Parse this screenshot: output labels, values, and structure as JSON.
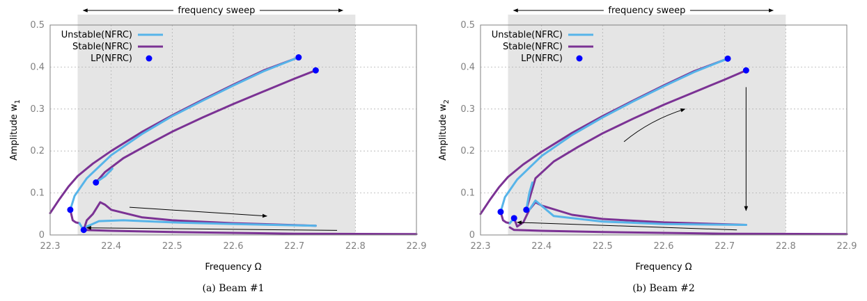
{
  "chart_data": [
    {
      "type": "line",
      "caption": "(a) Beam #1",
      "xlabel": "Frequency Ω",
      "ylabel": "Amplitude w",
      "ylabel_sub": "1",
      "xlim": [
        22.3,
        22.9
      ],
      "ylim": [
        0,
        0.5
      ],
      "xticks": [
        "22.3",
        "22.4",
        "22.5",
        "22.6",
        "22.7",
        "22.8",
        "22.9"
      ],
      "yticks": [
        "0",
        "0.1",
        "0.2",
        "0.3",
        "0.4",
        "0.5"
      ],
      "grid": true,
      "legend_position": "top-left",
      "legend": [
        "Unstable(NFRC)",
        "Stable(NFRC)",
        "LP(NFRC)"
      ],
      "shaded_region": [
        22.345,
        22.8
      ],
      "sweep_label": "frequency sweep",
      "colors": {
        "unstable": "#56b4e9",
        "stable": "#7b3294",
        "lp": "#0000ff",
        "shade": "#e5e5e5"
      },
      "series": [
        {
          "name": "Stable(NFRC)",
          "x": [
            22.3,
            22.315,
            22.33,
            22.345,
            22.37,
            22.4,
            22.45,
            22.5,
            22.55,
            22.6,
            22.65,
            22.707
          ],
          "y": [
            0.052,
            0.085,
            0.115,
            0.14,
            0.17,
            0.2,
            0.245,
            0.285,
            0.322,
            0.358,
            0.392,
            0.423
          ]
        },
        {
          "name": "Unstable(NFRC)",
          "x": [
            22.333,
            22.34,
            22.36,
            22.4,
            22.45,
            22.5,
            22.55,
            22.6,
            22.65,
            22.707
          ],
          "y": [
            0.06,
            0.093,
            0.135,
            0.19,
            0.24,
            0.283,
            0.32,
            0.356,
            0.39,
            0.423
          ]
        },
        {
          "name": "Stable(NFRC)",
          "x": [
            22.375,
            22.39,
            22.42,
            22.46,
            22.5,
            22.55,
            22.6,
            22.65,
            22.7,
            22.735
          ],
          "y": [
            0.125,
            0.15,
            0.183,
            0.215,
            0.246,
            0.28,
            0.312,
            0.342,
            0.372,
            0.392
          ]
        },
        {
          "name": "Unstable(NFRC)",
          "x": [
            22.375,
            22.39,
            22.402
          ],
          "y": [
            0.125,
            0.14,
            0.158
          ]
        },
        {
          "name": "Stable(NFRC)",
          "x": [
            22.333,
            22.337,
            22.342,
            22.348
          ],
          "y": [
            0.06,
            0.035,
            0.03,
            0.028
          ]
        },
        {
          "name": "Unstable(NFRC)",
          "x": [
            22.348,
            22.352,
            22.355
          ],
          "y": [
            0.028,
            0.018,
            0.012
          ]
        },
        {
          "name": "Stable(NFRC)",
          "x": [
            22.355,
            22.36,
            22.37,
            22.382,
            22.39,
            22.4,
            22.45,
            22.5,
            22.6,
            22.735
          ],
          "y": [
            0.012,
            0.035,
            0.05,
            0.078,
            0.072,
            0.06,
            0.042,
            0.035,
            0.028,
            0.022
          ]
        },
        {
          "name": "Unstable(NFRC)",
          "x": [
            22.36,
            22.38,
            22.42,
            22.5,
            22.6,
            22.735
          ],
          "y": [
            0.02,
            0.033,
            0.035,
            0.03,
            0.026,
            0.022
          ]
        },
        {
          "name": "Stable(NFRC)",
          "x": [
            22.355,
            22.4,
            22.5,
            22.6,
            22.7,
            22.9
          ],
          "y": [
            0.012,
            0.01,
            0.007,
            0.005,
            0.003,
            0.002
          ]
        }
      ],
      "lp_points": {
        "x": [
          22.333,
          22.355,
          22.375,
          22.707,
          22.735
        ],
        "y": [
          0.06,
          0.012,
          0.125,
          0.423,
          0.392
        ]
      },
      "arrows": [
        {
          "x1": 22.43,
          "y1": 0.066,
          "x2": 22.655,
          "y2": 0.045
        },
        {
          "x1": 22.77,
          "y1": 0.011,
          "x2": 22.36,
          "y2": 0.017
        }
      ]
    },
    {
      "type": "line",
      "caption": "(b) Beam #2",
      "xlabel": "Frequency Ω",
      "ylabel": "Amplitude w",
      "ylabel_sub": "2",
      "xlim": [
        22.3,
        22.9
      ],
      "ylim": [
        0,
        0.5
      ],
      "xticks": [
        "22.3",
        "22.4",
        "22.5",
        "22.6",
        "22.7",
        "22.8",
        "22.9"
      ],
      "yticks": [
        "0",
        "0.1",
        "0.2",
        "0.3",
        "0.4",
        "0.5"
      ],
      "grid": true,
      "legend_position": "top-left",
      "legend": [
        "Unstable(NFRC)",
        "Stable(NFRC)",
        "LP(NFRC)"
      ],
      "shaded_region": [
        22.345,
        22.8
      ],
      "sweep_label": "frequency sweep",
      "colors": {
        "unstable": "#56b4e9",
        "stable": "#7b3294",
        "lp": "#0000ff",
        "shade": "#e5e5e5"
      },
      "series": [
        {
          "name": "Stable(NFRC)",
          "x": [
            22.3,
            22.315,
            22.33,
            22.345,
            22.37,
            22.4,
            22.45,
            22.5,
            22.55,
            22.6,
            22.65,
            22.705
          ],
          "y": [
            0.05,
            0.083,
            0.113,
            0.138,
            0.168,
            0.198,
            0.243,
            0.283,
            0.32,
            0.356,
            0.39,
            0.42
          ]
        },
        {
          "name": "Unstable(NFRC)",
          "x": [
            22.333,
            22.34,
            22.36,
            22.4,
            22.45,
            22.5,
            22.55,
            22.6,
            22.65,
            22.705
          ],
          "y": [
            0.055,
            0.09,
            0.132,
            0.188,
            0.238,
            0.28,
            0.318,
            0.354,
            0.388,
            0.42
          ]
        },
        {
          "name": "Stable(NFRC)",
          "x": [
            22.375,
            22.39,
            22.42,
            22.46,
            22.5,
            22.55,
            22.6,
            22.65,
            22.7,
            22.735
          ],
          "y": [
            0.06,
            0.135,
            0.175,
            0.21,
            0.242,
            0.277,
            0.31,
            0.34,
            0.37,
            0.392
          ]
        },
        {
          "name": "Unstable(NFRC)",
          "x": [
            22.375,
            22.38,
            22.385
          ],
          "y": [
            0.06,
            0.1,
            0.125
          ]
        },
        {
          "name": "Stable(NFRC)",
          "x": [
            22.333,
            22.337,
            22.342,
            22.348
          ],
          "y": [
            0.055,
            0.035,
            0.03,
            0.028
          ]
        },
        {
          "name": "Unstable(NFRC)",
          "x": [
            22.348,
            22.352,
            22.355
          ],
          "y": [
            0.028,
            0.035,
            0.04
          ]
        },
        {
          "name": "Stable(NFRC)",
          "x": [
            22.355,
            22.36,
            22.37,
            22.38,
            22.39,
            22.4,
            22.45,
            22.5,
            22.6,
            22.735
          ],
          "y": [
            0.04,
            0.02,
            0.03,
            0.06,
            0.078,
            0.07,
            0.048,
            0.038,
            0.03,
            0.024
          ]
        },
        {
          "name": "Unstable(NFRC)",
          "x": [
            22.38,
            22.39,
            22.42,
            22.5,
            22.6,
            22.735
          ],
          "y": [
            0.06,
            0.082,
            0.045,
            0.032,
            0.026,
            0.024
          ]
        },
        {
          "name": "Stable(NFRC)",
          "x": [
            22.348,
            22.355,
            22.4,
            22.5,
            22.6,
            22.7,
            22.9
          ],
          "y": [
            0.018,
            0.012,
            0.01,
            0.007,
            0.005,
            0.003,
            0.002
          ]
        }
      ],
      "lp_points": {
        "x": [
          22.333,
          22.355,
          22.375,
          22.705,
          22.735
        ],
        "y": [
          0.055,
          0.04,
          0.06,
          0.42,
          0.392
        ]
      },
      "arrows": [
        {
          "x1": 22.535,
          "y1": 0.222,
          "x2": 22.635,
          "y2": 0.3
        },
        {
          "x1": 22.735,
          "y1": 0.352,
          "x2": 22.735,
          "y2": 0.058
        },
        {
          "x1": 22.72,
          "y1": 0.012,
          "x2": 22.36,
          "y2": 0.03
        }
      ]
    }
  ]
}
